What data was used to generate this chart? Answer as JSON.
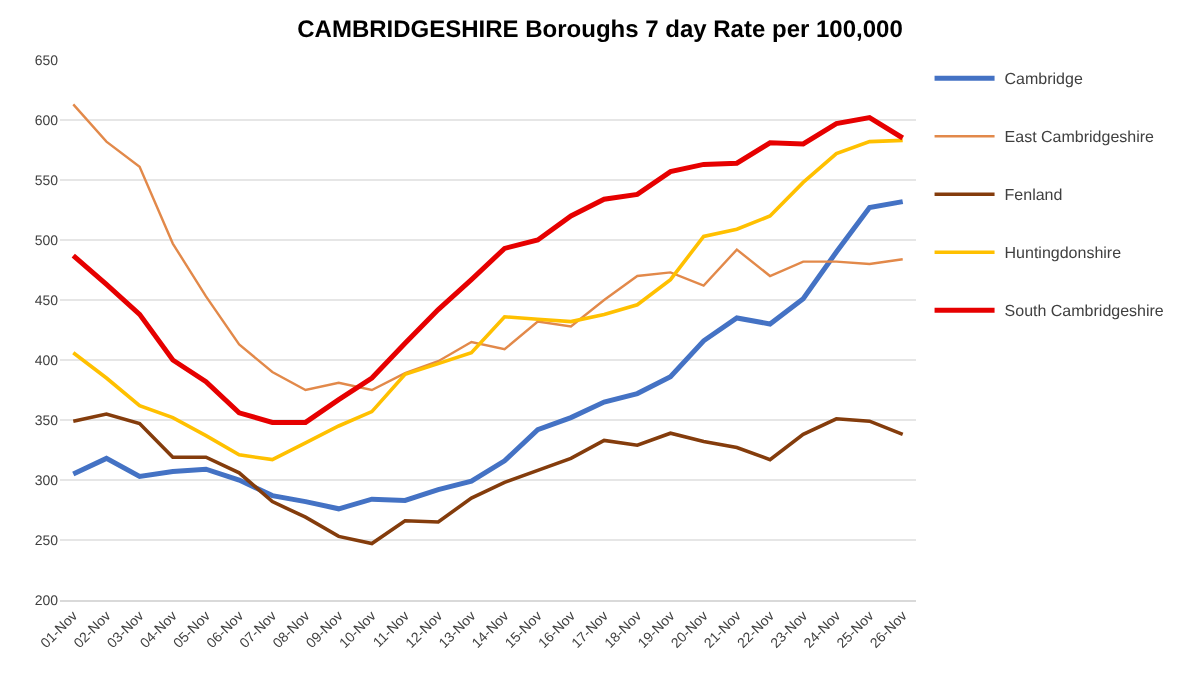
{
  "chart_data": {
    "type": "line",
    "title": "CAMBRIDGESHIRE Boroughs 7 day Rate per 100,000",
    "categories": [
      "01-Nov",
      "02-Nov",
      "03-Nov",
      "04-Nov",
      "05-Nov",
      "06-Nov",
      "07-Nov",
      "08-Nov",
      "09-Nov",
      "10-Nov",
      "11-Nov",
      "12-Nov",
      "13-Nov",
      "14-Nov",
      "15-Nov",
      "16-Nov",
      "17-Nov",
      "18-Nov",
      "19-Nov",
      "20-Nov",
      "21-Nov",
      "22-Nov",
      "23-Nov",
      "24-Nov",
      "25-Nov",
      "26-Nov"
    ],
    "series": [
      {
        "name": "Cambridge",
        "color": "#4472c4",
        "values": [
          305,
          318,
          303,
          307,
          309,
          300,
          287,
          282,
          276,
          284,
          283,
          292,
          299,
          316,
          342,
          352,
          365,
          372,
          386,
          416,
          435,
          430,
          451,
          490,
          527,
          532
        ]
      },
      {
        "name": "East Cambridgeshire",
        "color": "#e2894a",
        "values": [
          613,
          582,
          561,
          497,
          453,
          413,
          390,
          375,
          381,
          375,
          389,
          399,
          415,
          409,
          432,
          428,
          450,
          470,
          473,
          462,
          492,
          470,
          482,
          482,
          480,
          484
        ]
      },
      {
        "name": "Fenland",
        "color": "#843c0c",
        "values": [
          349,
          355,
          347,
          319,
          319,
          306,
          282,
          269,
          253,
          247,
          266,
          265,
          285,
          298,
          308,
          318,
          333,
          329,
          339,
          332,
          327,
          317,
          338,
          351,
          349,
          338
        ]
      },
      {
        "name": "Huntingdonshire",
        "color": "#ffc000",
        "values": [
          406,
          385,
          362,
          352,
          337,
          321,
          317,
          331,
          345,
          357,
          388,
          397,
          406,
          436,
          434,
          432,
          438,
          446,
          467,
          503,
          509,
          520,
          548,
          572,
          582,
          583
        ]
      },
      {
        "name": "South Cambridgeshire",
        "color": "#e60000",
        "values": [
          487,
          463,
          438,
          400,
          382,
          356,
          348,
          348,
          367,
          385,
          414,
          442,
          467,
          493,
          500,
          520,
          534,
          538,
          557,
          563,
          564,
          581,
          580,
          597,
          602,
          585
        ]
      }
    ],
    "ylim": [
      200,
      650
    ],
    "yticks": [
      200,
      250,
      300,
      350,
      400,
      450,
      500,
      550,
      600,
      650
    ],
    "grid": "y",
    "legend": "right"
  }
}
